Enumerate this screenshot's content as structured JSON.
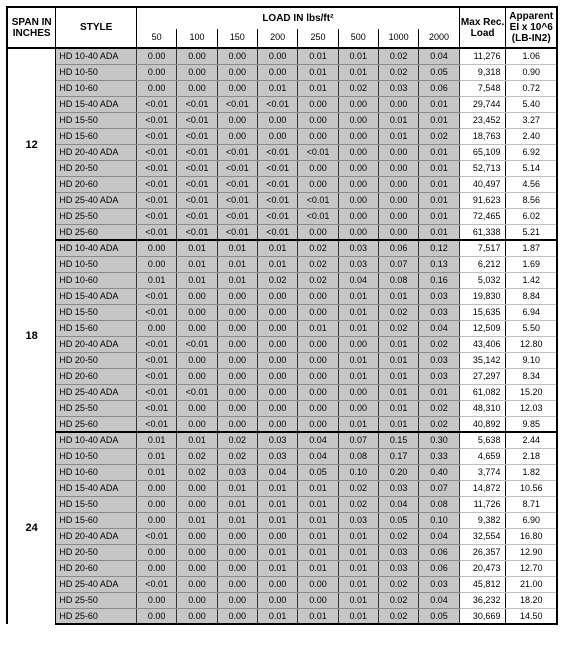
{
  "header": {
    "span": "SPAN IN INCHES",
    "style": "STYLE",
    "load_top": "LOAD IN lbs/ft²",
    "load_cols": [
      "50",
      "100",
      "150",
      "200",
      "250",
      "500",
      "1000",
      "2000"
    ],
    "maxrec": "Max Rec. Load",
    "ei": "Apparent EI x 10^6 (LB-IN2)"
  },
  "groups": [
    {
      "span": "12",
      "rows": [
        {
          "style": "HD 10-40 ADA",
          "loads": [
            "0.00",
            "0.00",
            "0.00",
            "0.00",
            "0.01",
            "0.01",
            "0.02",
            "0.04"
          ],
          "maxrec": "11,276",
          "ei": "1.06"
        },
        {
          "style": "HD 10-50",
          "loads": [
            "0.00",
            "0.00",
            "0.00",
            "0.00",
            "0.01",
            "0.01",
            "0.02",
            "0.05"
          ],
          "maxrec": "9,318",
          "ei": "0.90"
        },
        {
          "style": "HD 10-60",
          "loads": [
            "0.00",
            "0.00",
            "0.00",
            "0.01",
            "0.01",
            "0.02",
            "0.03",
            "0.06"
          ],
          "maxrec": "7,548",
          "ei": "0.72"
        },
        {
          "style": "HD 15-40 ADA",
          "loads": [
            "<0.01",
            "<0.01",
            "<0.01",
            "<0.01",
            "0.00",
            "0.00",
            "0.00",
            "0.01"
          ],
          "maxrec": "29,744",
          "ei": "5.40"
        },
        {
          "style": "HD 15-50",
          "loads": [
            "<0.01",
            "<0.01",
            "0.00",
            "0.00",
            "0.00",
            "0.00",
            "0.01",
            "0.01"
          ],
          "maxrec": "23,452",
          "ei": "3.27"
        },
        {
          "style": "HD 15-60",
          "loads": [
            "<0.01",
            "<0.01",
            "0.00",
            "0.00",
            "0.00",
            "0.00",
            "0.01",
            "0.02"
          ],
          "maxrec": "18,763",
          "ei": "2.40"
        },
        {
          "style": "HD 20-40 ADA",
          "loads": [
            "<0.01",
            "<0.01",
            "<0.01",
            "<0.01",
            "<0.01",
            "0.00",
            "0.00",
            "0.01"
          ],
          "maxrec": "65,109",
          "ei": "6.92"
        },
        {
          "style": "HD 20-50",
          "loads": [
            "<0.01",
            "<0.01",
            "<0.01",
            "<0.01",
            "0.00",
            "0.00",
            "0.00",
            "0.01"
          ],
          "maxrec": "52,713",
          "ei": "5.14"
        },
        {
          "style": "HD 20-60",
          "loads": [
            "<0.01",
            "<0.01",
            "<0.01",
            "<0.01",
            "0.00",
            "0.00",
            "0.00",
            "0.01"
          ],
          "maxrec": "40,497",
          "ei": "4.56"
        },
        {
          "style": "HD 25-40 ADA",
          "loads": [
            "<0.01",
            "<0.01",
            "<0.01",
            "<0.01",
            "<0.01",
            "0.00",
            "0.00",
            "0.01"
          ],
          "maxrec": "91,623",
          "ei": "8.56"
        },
        {
          "style": "HD 25-50",
          "loads": [
            "<0.01",
            "<0.01",
            "<0.01",
            "<0.01",
            "<0.01",
            "0.00",
            "0.00",
            "0.01"
          ],
          "maxrec": "72,465",
          "ei": "6.02"
        },
        {
          "style": "HD 25-60",
          "loads": [
            "<0.01",
            "<0.01",
            "<0.01",
            "<0.01",
            "0.00",
            "0.00",
            "0.00",
            "0.01"
          ],
          "maxrec": "61,338",
          "ei": "5.21"
        }
      ]
    },
    {
      "span": "18",
      "rows": [
        {
          "style": "HD 10-40 ADA",
          "loads": [
            "0.00",
            "0.01",
            "0.01",
            "0.01",
            "0.02",
            "0.03",
            "0.06",
            "0.12"
          ],
          "maxrec": "7,517",
          "ei": "1.87"
        },
        {
          "style": "HD 10-50",
          "loads": [
            "0.00",
            "0.01",
            "0.01",
            "0.01",
            "0.02",
            "0.03",
            "0.07",
            "0.13"
          ],
          "maxrec": "6,212",
          "ei": "1.69"
        },
        {
          "style": "HD 10-60",
          "loads": [
            "0.01",
            "0.01",
            "0.01",
            "0.02",
            "0.02",
            "0.04",
            "0.08",
            "0.16"
          ],
          "maxrec": "5,032",
          "ei": "1.42"
        },
        {
          "style": "HD 15-40 ADA",
          "loads": [
            "<0.01",
            "0.00",
            "0.00",
            "0.00",
            "0.00",
            "0.01",
            "0.01",
            "0.03"
          ],
          "maxrec": "19,830",
          "ei": "8.84"
        },
        {
          "style": "HD 15-50",
          "loads": [
            "<0.01",
            "0.00",
            "0.00",
            "0.00",
            "0.00",
            "0.01",
            "0.02",
            "0.03"
          ],
          "maxrec": "15,635",
          "ei": "6.94"
        },
        {
          "style": "HD 15-60",
          "loads": [
            "0.00",
            "0.00",
            "0.00",
            "0.00",
            "0.01",
            "0.01",
            "0.02",
            "0.04"
          ],
          "maxrec": "12,509",
          "ei": "5.50"
        },
        {
          "style": "HD 20-40 ADA",
          "loads": [
            "<0.01",
            "<0.01",
            "0.00",
            "0.00",
            "0.00",
            "0.00",
            "0.01",
            "0.02"
          ],
          "maxrec": "43,406",
          "ei": "12.80"
        },
        {
          "style": "HD 20-50",
          "loads": [
            "<0.01",
            "0.00",
            "0.00",
            "0.00",
            "0.00",
            "0.01",
            "0.01",
            "0.03"
          ],
          "maxrec": "35,142",
          "ei": "9.10"
        },
        {
          "style": "HD 20-60",
          "loads": [
            "<0.01",
            "0.00",
            "0.00",
            "0.00",
            "0.00",
            "0.01",
            "0.01",
            "0.03"
          ],
          "maxrec": "27,297",
          "ei": "8.34"
        },
        {
          "style": "HD 25-40 ADA",
          "loads": [
            "<0.01",
            "<0.01",
            "0.00",
            "0.00",
            "0.00",
            "0.00",
            "0.01",
            "0.01"
          ],
          "maxrec": "61,082",
          "ei": "15.20"
        },
        {
          "style": "HD 25-50",
          "loads": [
            "<0.01",
            "0.00",
            "0.00",
            "0.00",
            "0.00",
            "0.00",
            "0.01",
            "0.02"
          ],
          "maxrec": "48,310",
          "ei": "12.03"
        },
        {
          "style": "HD 25-60",
          "loads": [
            "<0.01",
            "0.00",
            "0.00",
            "0.00",
            "0.00",
            "0.01",
            "0.01",
            "0.02"
          ],
          "maxrec": "40,892",
          "ei": "9.85"
        }
      ]
    },
    {
      "span": "24",
      "rows": [
        {
          "style": "HD 10-40 ADA",
          "loads": [
            "0.01",
            "0.01",
            "0.02",
            "0.03",
            "0.04",
            "0.07",
            "0.15",
            "0.30"
          ],
          "maxrec": "5,638",
          "ei": "2.44"
        },
        {
          "style": "HD 10-50",
          "loads": [
            "0.01",
            "0.02",
            "0.02",
            "0.03",
            "0.04",
            "0.08",
            "0.17",
            "0.33"
          ],
          "maxrec": "4,659",
          "ei": "2.18"
        },
        {
          "style": "HD 10-60",
          "loads": [
            "0.01",
            "0.02",
            "0.03",
            "0.04",
            "0.05",
            "0.10",
            "0.20",
            "0.40"
          ],
          "maxrec": "3,774",
          "ei": "1.82"
        },
        {
          "style": "HD 15-40 ADA",
          "loads": [
            "0.00",
            "0.00",
            "0.01",
            "0.01",
            "0.01",
            "0.02",
            "0.03",
            "0.07"
          ],
          "maxrec": "14,872",
          "ei": "10.56"
        },
        {
          "style": "HD 15-50",
          "loads": [
            "0.00",
            "0.00",
            "0.01",
            "0.01",
            "0.01",
            "0.02",
            "0.04",
            "0.08"
          ],
          "maxrec": "11,726",
          "ei": "8.71"
        },
        {
          "style": "HD 15-60",
          "loads": [
            "0.00",
            "0.01",
            "0.01",
            "0.01",
            "0.01",
            "0.03",
            "0.05",
            "0.10"
          ],
          "maxrec": "9,382",
          "ei": "6.90"
        },
        {
          "style": "HD 20-40 ADA",
          "loads": [
            "<0.01",
            "0.00",
            "0.00",
            "0.00",
            "0.01",
            "0.01",
            "0.02",
            "0.04"
          ],
          "maxrec": "32,554",
          "ei": "16.80"
        },
        {
          "style": "HD 20-50",
          "loads": [
            "0.00",
            "0.00",
            "0.00",
            "0.01",
            "0.01",
            "0.01",
            "0.03",
            "0.06"
          ],
          "maxrec": "26,357",
          "ei": "12.90"
        },
        {
          "style": "HD 20-60",
          "loads": [
            "0.00",
            "0.00",
            "0.00",
            "0.01",
            "0.01",
            "0.01",
            "0.03",
            "0.06"
          ],
          "maxrec": "20,473",
          "ei": "12.70"
        },
        {
          "style": "HD 25-40 ADA",
          "loads": [
            "<0.01",
            "0.00",
            "0.00",
            "0.00",
            "0.00",
            "0.01",
            "0.02",
            "0.03"
          ],
          "maxrec": "45,812",
          "ei": "21.00"
        },
        {
          "style": "HD 25-50",
          "loads": [
            "0.00",
            "0.00",
            "0.00",
            "0.00",
            "0.00",
            "0.01",
            "0.02",
            "0.04"
          ],
          "maxrec": "36,232",
          "ei": "18.20"
        },
        {
          "style": "HD 25-60",
          "loads": [
            "0.00",
            "0.00",
            "0.00",
            "0.01",
            "0.01",
            "0.01",
            "0.02",
            "0.05"
          ],
          "maxrec": "30,669",
          "ei": "14.50"
        }
      ]
    }
  ]
}
